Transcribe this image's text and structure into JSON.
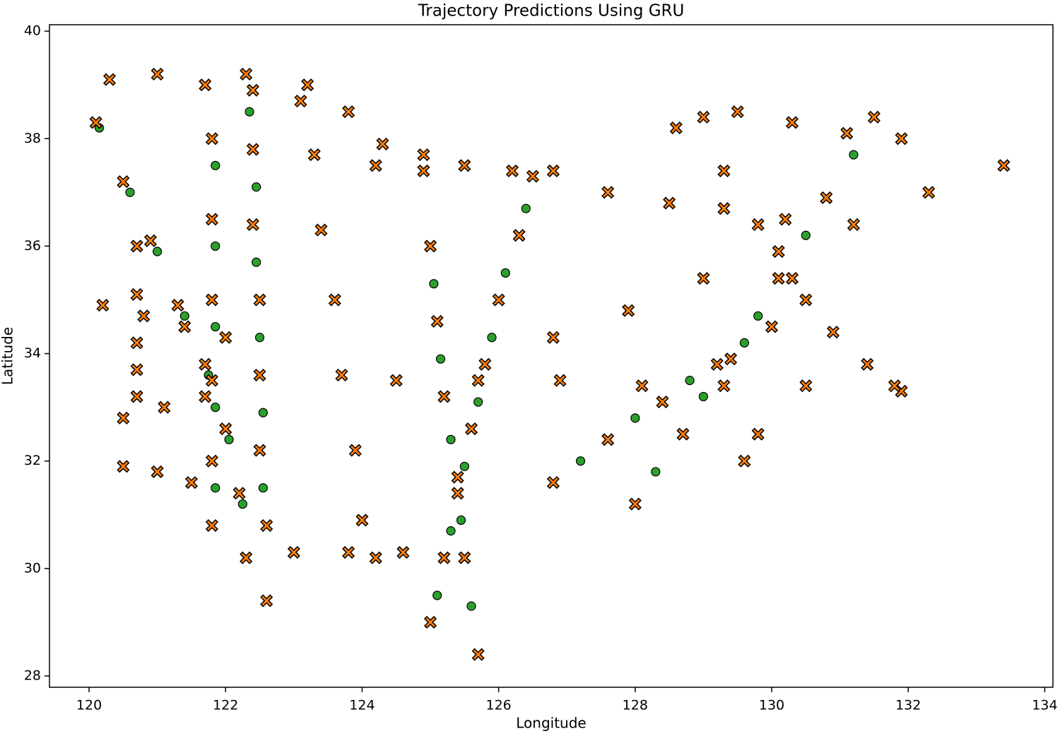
{
  "chart_data": {
    "type": "scatter",
    "title": "Trajectory Predictions Using GRU",
    "x_label": "Longitude",
    "y_label": "Latitude",
    "xlim": [
      119.42,
      134.12
    ],
    "ylim": [
      27.79,
      40.12
    ],
    "xticks": [
      120,
      122,
      124,
      126,
      128,
      130,
      132,
      134
    ],
    "yticks": [
      28,
      30,
      32,
      34,
      36,
      38,
      40
    ],
    "series": [
      {
        "color": "#2ca02c",
        "marker": "circle",
        "x": [
          120.15,
          120.6,
          121.0,
          121.4,
          121.75,
          122.05,
          122.25,
          121.85,
          121.85,
          121.85,
          121.85,
          121.85,
          122.35,
          122.45,
          122.45,
          122.5,
          122.55,
          122.55,
          126.4,
          126.1,
          125.9,
          125.7,
          125.5,
          125.3,
          125.1,
          125.05,
          125.15,
          125.3,
          125.45,
          125.6,
          131.2,
          130.5,
          129.8,
          129.0,
          128.3,
          127.2,
          128.0,
          128.8,
          129.6
        ],
        "y": [
          38.2,
          37.0,
          35.9,
          34.7,
          33.6,
          32.4,
          31.2,
          37.5,
          36.0,
          34.5,
          33.0,
          31.5,
          38.5,
          37.1,
          35.7,
          34.3,
          32.9,
          31.5,
          36.7,
          35.5,
          34.3,
          33.1,
          31.9,
          30.7,
          29.5,
          35.3,
          33.9,
          32.4,
          30.9,
          29.3,
          37.7,
          36.2,
          34.7,
          33.2,
          31.8,
          32.0,
          32.8,
          33.5,
          34.2
        ]
      },
      {
        "color": "#ff7f0e",
        "marker": "x",
        "x": [
          120.1,
          120.5,
          120.9,
          121.3,
          121.7,
          122.0,
          122.2,
          122.3,
          121.8,
          121.8,
          121.8,
          121.8,
          121.8,
          121.8,
          120.2,
          120.8,
          121.4,
          122.0,
          120.5,
          121.1,
          121.7,
          120.5,
          121.0,
          121.5,
          120.3,
          121.0,
          121.7,
          122.4,
          123.1,
          123.8,
          122.3,
          122.4,
          122.4,
          122.5,
          122.5,
          122.5,
          122.6,
          122.6,
          123.2,
          123.3,
          123.4,
          123.6,
          123.7,
          123.9,
          124.0,
          124.2,
          124.2,
          124.9,
          125.5,
          126.2,
          126.8,
          126.5,
          126.3,
          126.0,
          125.8,
          125.6,
          125.4,
          125.2,
          125.0,
          125.0,
          125.1,
          125.2,
          125.4,
          125.5,
          125.7,
          123.0,
          123.8,
          124.6,
          128.6,
          129.0,
          129.5,
          130.3,
          131.1,
          131.9,
          129.3,
          129.8,
          130.3,
          130.9,
          131.4,
          131.9,
          131.5,
          130.8,
          130.1,
          129.4,
          128.7,
          128.0,
          126.8,
          127.9,
          129.0,
          130.1,
          131.2,
          132.3,
          133.4,
          124.5,
          125.7,
          126.9,
          128.1,
          129.3,
          130.5,
          131.8,
          126.8,
          127.6,
          128.4,
          129.2,
          130.0,
          130.5,
          120.7,
          120.7,
          120.7,
          120.7,
          120.7,
          127.6,
          128.5,
          129.3,
          130.2,
          124.3,
          124.9,
          129.6,
          129.8
        ],
        "y": [
          38.3,
          37.2,
          36.1,
          34.9,
          33.8,
          32.6,
          31.4,
          30.2,
          38.0,
          36.5,
          35.0,
          33.5,
          32.0,
          30.8,
          34.9,
          34.7,
          34.5,
          34.3,
          32.8,
          33.0,
          33.2,
          31.9,
          31.8,
          31.6,
          39.1,
          39.2,
          39.0,
          38.9,
          38.7,
          38.5,
          39.2,
          37.8,
          36.4,
          35.0,
          33.6,
          32.2,
          30.8,
          29.4,
          39.0,
          37.7,
          36.3,
          35.0,
          33.6,
          32.2,
          30.9,
          30.2,
          37.5,
          37.4,
          37.5,
          37.4,
          37.4,
          37.3,
          36.2,
          35.0,
          33.8,
          32.6,
          31.4,
          30.2,
          29.0,
          36.0,
          34.6,
          33.2,
          31.7,
          30.2,
          28.4,
          30.3,
          30.3,
          30.3,
          38.2,
          38.4,
          38.5,
          38.3,
          38.1,
          38.0,
          37.4,
          36.4,
          35.4,
          34.4,
          33.8,
          33.3,
          38.4,
          36.9,
          35.4,
          33.9,
          32.5,
          31.2,
          34.3,
          34.8,
          35.4,
          35.9,
          36.4,
          37.0,
          37.5,
          33.5,
          33.5,
          33.5,
          33.4,
          33.4,
          33.4,
          33.4,
          31.6,
          32.4,
          33.1,
          33.8,
          34.5,
          35.0,
          36.0,
          35.1,
          34.2,
          33.7,
          33.2,
          37.0,
          36.8,
          36.7,
          36.5,
          37.9,
          37.7,
          32.0,
          32.5
        ]
      }
    ]
  }
}
